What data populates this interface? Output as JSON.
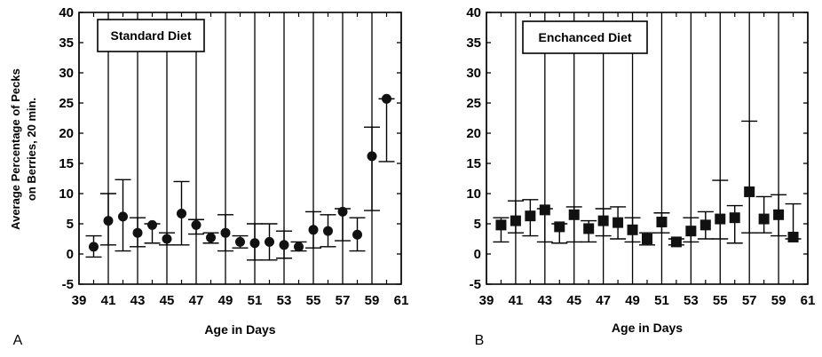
{
  "chart_data": [
    {
      "type": "scatter",
      "panel_label": "A",
      "legend": "Standard Diet",
      "xlabel": "Age in Days",
      "ylabel": "Average Percentage of Pecks on Berries, 20 min.",
      "xlim": [
        39,
        61
      ],
      "ylim": [
        -5,
        40
      ],
      "xticks": [
        "39",
        "41",
        "43",
        "45",
        "47",
        "49",
        "51",
        "53",
        "55",
        "57",
        "59",
        "61"
      ],
      "yticks": [
        "40",
        "35",
        "30",
        "25",
        "20",
        "15",
        "10",
        "5",
        "0",
        "-5"
      ],
      "grid": "vertical lines at every odd day",
      "marker": "circle",
      "points": [
        {
          "x": 40,
          "y": 1.2,
          "lo": -0.5,
          "hi": 3.0
        },
        {
          "x": 41,
          "y": 5.5,
          "lo": 1.5,
          "hi": 10.0
        },
        {
          "x": 42,
          "y": 6.2,
          "lo": 0.5,
          "hi": 12.3
        },
        {
          "x": 43,
          "y": 3.5,
          "lo": 1.2,
          "hi": 6.0
        },
        {
          "x": 44,
          "y": 4.8,
          "lo": 1.8,
          "hi": 5.0
        },
        {
          "x": 45,
          "y": 2.5,
          "lo": 1.5,
          "hi": 3.5
        },
        {
          "x": 46,
          "y": 6.7,
          "lo": 1.5,
          "hi": 12.0
        },
        {
          "x": 47,
          "y": 4.8,
          "lo": 3.3,
          "hi": 5.7
        },
        {
          "x": 48,
          "y": 2.7,
          "lo": 1.8,
          "hi": 3.5
        },
        {
          "x": 49,
          "y": 3.5,
          "lo": 0.5,
          "hi": 6.5
        },
        {
          "x": 50,
          "y": 2.0,
          "lo": 1.0,
          "hi": 3.0
        },
        {
          "x": 51,
          "y": 1.8,
          "lo": -1.0,
          "hi": 5.0
        },
        {
          "x": 52,
          "y": 2.0,
          "lo": -1.0,
          "hi": 5.0
        },
        {
          "x": 53,
          "y": 1.5,
          "lo": -0.7,
          "hi": 3.8
        },
        {
          "x": 54,
          "y": 1.2,
          "lo": 0.5,
          "hi": 2.0
        },
        {
          "x": 55,
          "y": 4.0,
          "lo": 1.0,
          "hi": 7.0
        },
        {
          "x": 56,
          "y": 3.8,
          "lo": 1.2,
          "hi": 6.5
        },
        {
          "x": 57,
          "y": 7.0,
          "lo": 2.2,
          "hi": 7.5
        },
        {
          "x": 58,
          "y": 3.2,
          "lo": 0.5,
          "hi": 6.0
        },
        {
          "x": 59,
          "y": 16.2,
          "lo": 7.2,
          "hi": 21.0
        },
        {
          "x": 60,
          "y": 25.7,
          "lo": 15.3,
          "hi": 25.7
        }
      ]
    },
    {
      "type": "scatter",
      "panel_label": "B",
      "legend": "Enchanced Diet",
      "xlabel": "Age in Days",
      "ylabel": "",
      "xlim": [
        39,
        61
      ],
      "ylim": [
        -5,
        40
      ],
      "xticks": [
        "39",
        "41",
        "43",
        "45",
        "47",
        "49",
        "51",
        "53",
        "55",
        "57",
        "59",
        "61"
      ],
      "yticks": [
        "40",
        "35",
        "30",
        "25",
        "20",
        "15",
        "10",
        "5",
        "0",
        "-5"
      ],
      "grid": "vertical lines at every odd day",
      "marker": "square",
      "points": [
        {
          "x": 40,
          "y": 4.8,
          "lo": 2.0,
          "hi": 6.0
        },
        {
          "x": 41,
          "y": 5.5,
          "lo": 3.5,
          "hi": 8.8
        },
        {
          "x": 42,
          "y": 6.3,
          "lo": 3.0,
          "hi": 9.0
        },
        {
          "x": 43,
          "y": 7.3,
          "lo": 2.0,
          "hi": 7.5
        },
        {
          "x": 44,
          "y": 4.5,
          "lo": 1.8,
          "hi": 5.0
        },
        {
          "x": 45,
          "y": 6.5,
          "lo": 2.0,
          "hi": 7.8
        },
        {
          "x": 46,
          "y": 4.2,
          "lo": 2.0,
          "hi": 5.5
        },
        {
          "x": 47,
          "y": 5.5,
          "lo": 3.0,
          "hi": 7.5
        },
        {
          "x": 48,
          "y": 5.2,
          "lo": 2.5,
          "hi": 7.8
        },
        {
          "x": 49,
          "y": 4.0,
          "lo": 2.0,
          "hi": 6.0
        },
        {
          "x": 50,
          "y": 2.5,
          "lo": 1.5,
          "hi": 3.5
        },
        {
          "x": 51,
          "y": 5.3,
          "lo": 3.5,
          "hi": 6.8
        },
        {
          "x": 52,
          "y": 2.0,
          "lo": 1.5,
          "hi": 2.5
        },
        {
          "x": 53,
          "y": 3.8,
          "lo": 2.0,
          "hi": 6.0
        },
        {
          "x": 54,
          "y": 4.8,
          "lo": 2.5,
          "hi": 7.0
        },
        {
          "x": 55,
          "y": 5.8,
          "lo": 2.5,
          "hi": 12.2
        },
        {
          "x": 56,
          "y": 6.0,
          "lo": 1.8,
          "hi": 8.0
        },
        {
          "x": 57,
          "y": 10.3,
          "lo": 3.5,
          "hi": 22.0
        },
        {
          "x": 58,
          "y": 5.8,
          "lo": 3.5,
          "hi": 9.5
        },
        {
          "x": 59,
          "y": 6.5,
          "lo": 3.0,
          "hi": 9.8
        },
        {
          "x": 60,
          "y": 2.8,
          "lo": 2.5,
          "hi": 8.3
        }
      ]
    }
  ]
}
